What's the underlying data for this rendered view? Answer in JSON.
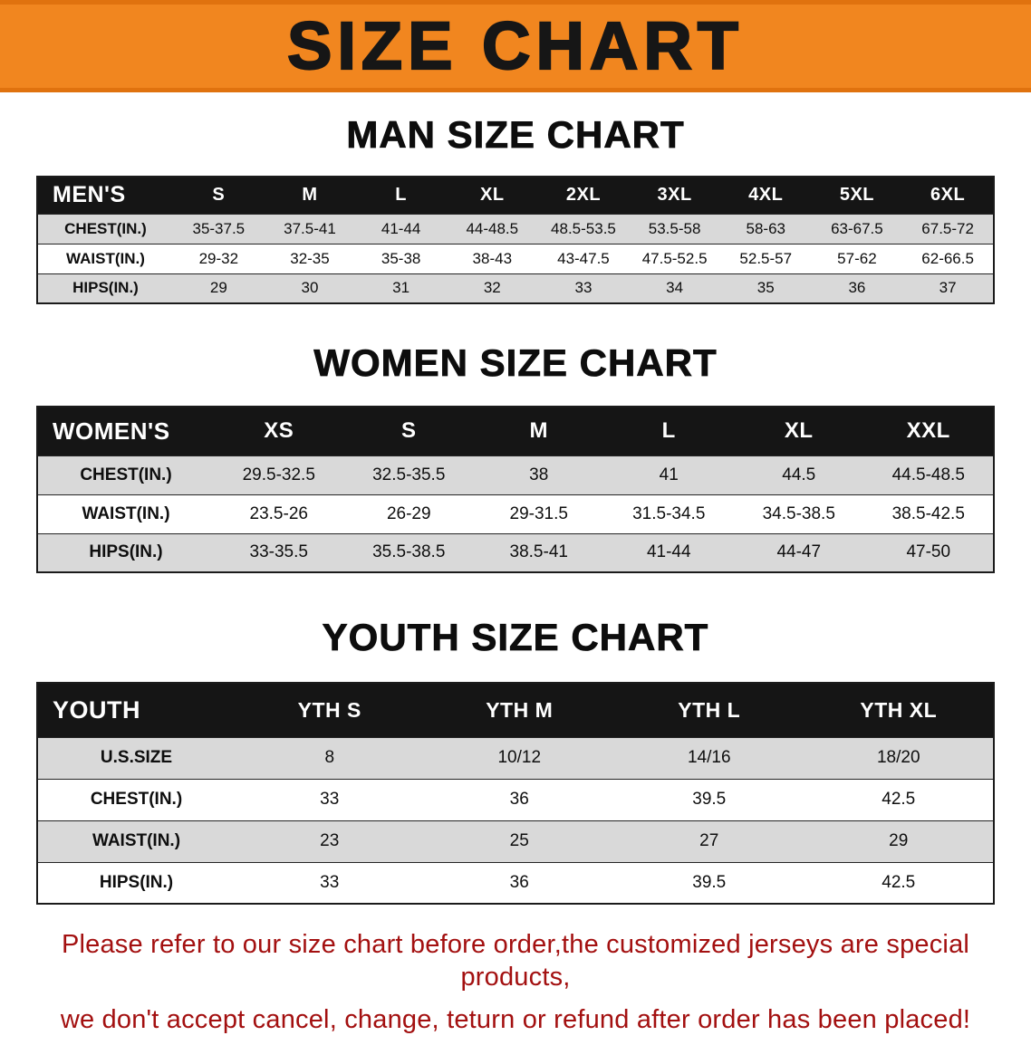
{
  "banner": {
    "title": "SIZE CHART"
  },
  "tables": {
    "men": {
      "heading": "MAN SIZE CHART",
      "corner": "MEN'S",
      "columns": [
        "S",
        "M",
        "L",
        "XL",
        "2XL",
        "3XL",
        "4XL",
        "5XL",
        "6XL"
      ],
      "rows": [
        {
          "label": "CHEST(IN.)",
          "values": [
            "35-37.5",
            "37.5-41",
            "41-44",
            "44-48.5",
            "48.5-53.5",
            "53.5-58",
            "58-63",
            "63-67.5",
            "67.5-72"
          ]
        },
        {
          "label": "WAIST(IN.)",
          "values": [
            "29-32",
            "32-35",
            "35-38",
            "38-43",
            "43-47.5",
            "47.5-52.5",
            "52.5-57",
            "57-62",
            "62-66.5"
          ]
        },
        {
          "label": "HIPS(IN.)",
          "values": [
            "29",
            "30",
            "31",
            "32",
            "33",
            "34",
            "35",
            "36",
            "37"
          ]
        }
      ]
    },
    "women": {
      "heading": "WOMEN SIZE CHART",
      "corner": "WOMEN'S",
      "columns": [
        "XS",
        "S",
        "M",
        "L",
        "XL",
        "XXL"
      ],
      "rows": [
        {
          "label": "CHEST(IN.)",
          "values": [
            "29.5-32.5",
            "32.5-35.5",
            "38",
            "41",
            "44.5",
            "44.5-48.5"
          ]
        },
        {
          "label": "WAIST(IN.)",
          "values": [
            "23.5-26",
            "26-29",
            "29-31.5",
            "31.5-34.5",
            "34.5-38.5",
            "38.5-42.5"
          ]
        },
        {
          "label": "HIPS(IN.)",
          "values": [
            "33-35.5",
            "35.5-38.5",
            "38.5-41",
            "41-44",
            "44-47",
            "47-50"
          ]
        }
      ]
    },
    "youth": {
      "heading": "YOUTH SIZE CHART",
      "corner": "YOUTH",
      "columns": [
        "YTH S",
        "YTH M",
        "YTH L",
        "YTH XL"
      ],
      "rows": [
        {
          "label": "U.S.SIZE",
          "values": [
            "8",
            "10/12",
            "14/16",
            "18/20"
          ]
        },
        {
          "label": "CHEST(IN.)",
          "values": [
            "33",
            "36",
            "39.5",
            "42.5"
          ]
        },
        {
          "label": "WAIST(IN.)",
          "values": [
            "23",
            "25",
            "27",
            "29"
          ]
        },
        {
          "label": "HIPS(IN.)",
          "values": [
            "33",
            "36",
            "39.5",
            "42.5"
          ]
        }
      ]
    }
  },
  "footer": {
    "line1": "Please refer to our size chart before order,the customized jerseys are special products,",
    "line2": "we don't accept cancel, change, teturn or refund after order has been placed!"
  },
  "colors": {
    "banner_orange": "#f1861f",
    "header_black": "#151515",
    "row_gray": "#d9d9d9",
    "footer_red": "#a31010"
  }
}
